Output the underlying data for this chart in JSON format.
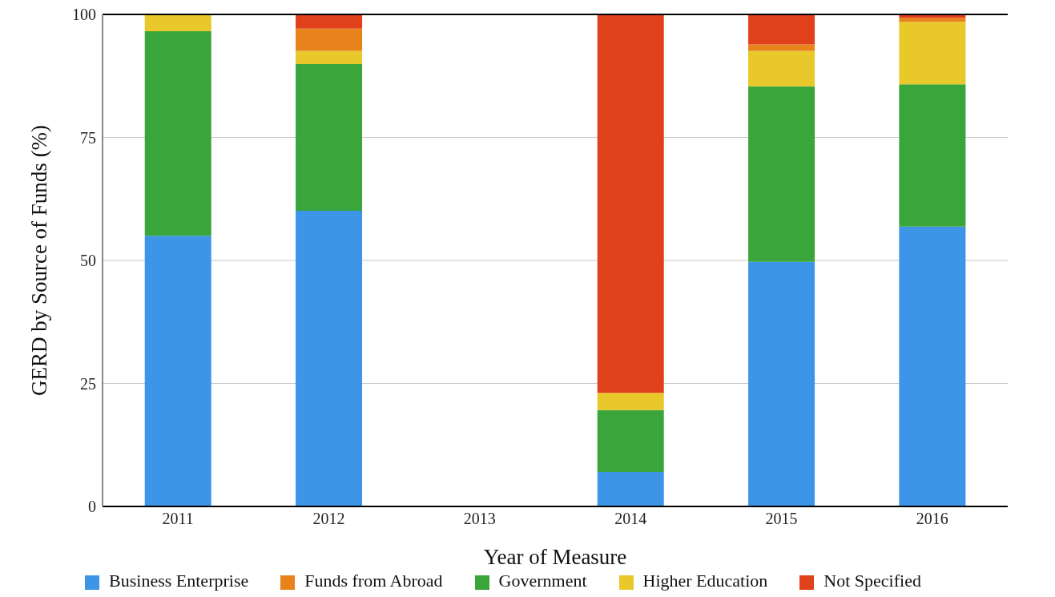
{
  "chart_data": {
    "type": "bar",
    "stacked": true,
    "xlabel": "Year of Measure",
    "ylabel": "GERD by Source of Funds (%)",
    "categories": [
      "2011",
      "2012",
      "2013",
      "2014",
      "2015",
      "2016"
    ],
    "series": [
      {
        "name": "Business Enterprise",
        "color": "#3d95e8",
        "values": [
          55,
          60.1,
          null,
          7,
          49.7,
          56.9
        ]
      },
      {
        "name": "Government",
        "color": "#3aa53a",
        "values": [
          41.6,
          29.8,
          null,
          12.6,
          35.7,
          28.9
        ]
      },
      {
        "name": "Higher Education",
        "color": "#e8c82a",
        "values": [
          3.4,
          2.7,
          null,
          3.5,
          7.2,
          12.7
        ]
      },
      {
        "name": "Funds from Abroad",
        "color": "#e8821a",
        "values": [
          null,
          4.5,
          null,
          null,
          1.3,
          0.8
        ]
      },
      {
        "name": "Not Specified",
        "color": "#e0401a",
        "values": [
          null,
          2.9,
          null,
          76.9,
          6.1,
          0.6
        ]
      }
    ],
    "ylim": [
      0,
      100
    ],
    "yticks": [
      0,
      25,
      50,
      75,
      100
    ],
    "grid": "y",
    "legend": "bottom"
  }
}
